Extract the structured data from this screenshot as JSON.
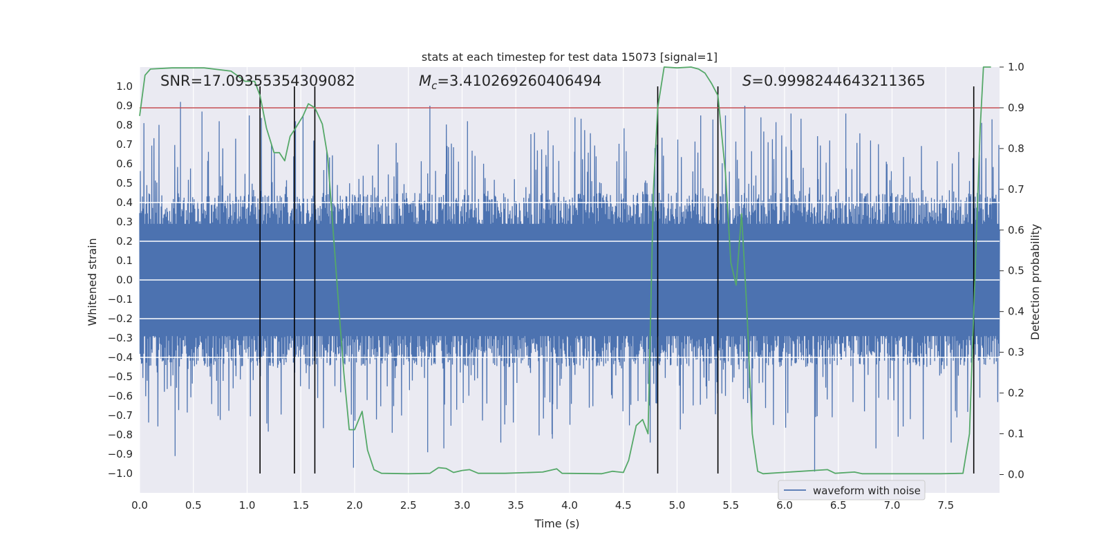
{
  "chart_data": {
    "type": "line",
    "title": "stats at each timestep for test data 15073 [signal=1]",
    "xlabel": "Time (s)",
    "ylabel": "Whitened strain",
    "y2label": "Detection probability",
    "xlim": [
      0.0,
      8.0
    ],
    "ylim": [
      -1.1,
      1.1
    ],
    "y2lim": [
      -0.045,
      1.0
    ],
    "x_ticks": [
      "0.0",
      "0.5",
      "1.0",
      "1.5",
      "2.0",
      "2.5",
      "3.0",
      "3.5",
      "4.0",
      "4.5",
      "5.0",
      "5.5",
      "6.0",
      "6.5",
      "7.0",
      "7.5"
    ],
    "y_ticks": [
      "1.0",
      "0.9",
      "0.8",
      "0.7",
      "0.6",
      "0.5",
      "0.4",
      "0.3",
      "0.2",
      "0.1",
      "0.0",
      "−0.1",
      "−0.2",
      "−0.3",
      "−0.4",
      "−0.5",
      "−0.6",
      "−0.7",
      "−0.8",
      "−0.9",
      "−1.0"
    ],
    "y2_ticks": [
      "1.0",
      "0.9",
      "0.8",
      "0.7",
      "0.6",
      "0.5",
      "0.4",
      "0.3",
      "0.2",
      "0.1",
      "0.0"
    ],
    "annotations": {
      "snr": "SNR=17.09355354309082",
      "mc_symbol": "M",
      "mc_sub": "c",
      "mc_value": "=3.410269260406494",
      "s_symbol": "S",
      "s_value": "=0.9998244643211365"
    },
    "threshold": {
      "y2": 0.9,
      "color": "#c44e52"
    },
    "vertical_lines_x": [
      1.12,
      1.44,
      1.63,
      4.82,
      5.38,
      7.76
    ],
    "series": [
      {
        "name": "waveform with noise",
        "axis": "left",
        "color": "#4c72b0",
        "envelope_note": "dense noise, typical amplitude within ±0.4, peaks up to ±1.0",
        "peaks": [
          {
            "x": 0.33,
            "y": -0.91
          },
          {
            "x": 0.38,
            "y": 0.92
          },
          {
            "x": 0.58,
            "y": 0.87
          },
          {
            "x": 0.74,
            "y": 0.82
          },
          {
            "x": 1.02,
            "y": 0.85
          },
          {
            "x": 1.45,
            "y": 0.82
          },
          {
            "x": 1.52,
            "y": 0.85
          },
          {
            "x": 1.99,
            "y": -0.97
          },
          {
            "x": 2.68,
            "y": -0.89
          },
          {
            "x": 2.7,
            "y": 0.9
          },
          {
            "x": 2.83,
            "y": -0.87
          },
          {
            "x": 3.05,
            "y": 0.82
          },
          {
            "x": 3.36,
            "y": -0.84
          },
          {
            "x": 3.84,
            "y": -0.82
          },
          {
            "x": 4.05,
            "y": 0.84
          },
          {
            "x": 4.75,
            "y": -0.84
          },
          {
            "x": 5.22,
            "y": 0.85
          },
          {
            "x": 5.45,
            "y": 0.85
          },
          {
            "x": 5.63,
            "y": 0.9
          },
          {
            "x": 5.78,
            "y": 0.84
          },
          {
            "x": 6.06,
            "y": 0.86
          },
          {
            "x": 6.28,
            "y": -0.99
          },
          {
            "x": 6.57,
            "y": 0.86
          },
          {
            "x": 6.85,
            "y": -0.87
          },
          {
            "x": 7.55,
            "y": -0.84
          },
          {
            "x": 7.93,
            "y": 0.83
          }
        ]
      },
      {
        "name": "detection probability",
        "axis": "right",
        "color": "#55a868",
        "points": [
          [
            0.0,
            0.88
          ],
          [
            0.05,
            0.98
          ],
          [
            0.1,
            0.995
          ],
          [
            0.3,
            0.998
          ],
          [
            0.6,
            0.998
          ],
          [
            0.85,
            0.99
          ],
          [
            0.93,
            0.975
          ],
          [
            0.98,
            0.965
          ],
          [
            1.07,
            0.965
          ],
          [
            1.12,
            0.93
          ],
          [
            1.18,
            0.85
          ],
          [
            1.25,
            0.79
          ],
          [
            1.3,
            0.79
          ],
          [
            1.35,
            0.77
          ],
          [
            1.4,
            0.83
          ],
          [
            1.45,
            0.85
          ],
          [
            1.52,
            0.88
          ],
          [
            1.57,
            0.91
          ],
          [
            1.63,
            0.9
          ],
          [
            1.7,
            0.86
          ],
          [
            1.75,
            0.78
          ],
          [
            1.8,
            0.6
          ],
          [
            1.85,
            0.42
          ],
          [
            1.9,
            0.25
          ],
          [
            1.95,
            0.11
          ],
          [
            2.0,
            0.11
          ],
          [
            2.07,
            0.155
          ],
          [
            2.12,
            0.06
          ],
          [
            2.18,
            0.012
          ],
          [
            2.25,
            0.003
          ],
          [
            2.5,
            0.002
          ],
          [
            2.7,
            0.003
          ],
          [
            2.78,
            0.017
          ],
          [
            2.85,
            0.015
          ],
          [
            2.92,
            0.005
          ],
          [
            3.0,
            0.01
          ],
          [
            3.07,
            0.012
          ],
          [
            3.15,
            0.003
          ],
          [
            3.4,
            0.003
          ],
          [
            3.75,
            0.006
          ],
          [
            3.88,
            0.014
          ],
          [
            3.93,
            0.003
          ],
          [
            4.3,
            0.002
          ],
          [
            4.4,
            0.008
          ],
          [
            4.5,
            0.005
          ],
          [
            4.55,
            0.035
          ],
          [
            4.62,
            0.12
          ],
          [
            4.68,
            0.135
          ],
          [
            4.73,
            0.1
          ],
          [
            4.78,
            0.7
          ],
          [
            4.82,
            0.9
          ],
          [
            4.88,
            1.0
          ],
          [
            5.0,
            0.998
          ],
          [
            5.13,
            1.0
          ],
          [
            5.2,
            0.995
          ],
          [
            5.26,
            0.985
          ],
          [
            5.32,
            0.96
          ],
          [
            5.38,
            0.93
          ],
          [
            5.45,
            0.74
          ],
          [
            5.5,
            0.52
          ],
          [
            5.55,
            0.465
          ],
          [
            5.6,
            0.64
          ],
          [
            5.65,
            0.4
          ],
          [
            5.7,
            0.1
          ],
          [
            5.75,
            0.008
          ],
          [
            5.8,
            0.002
          ],
          [
            6.4,
            0.012
          ],
          [
            6.47,
            0.003
          ],
          [
            6.65,
            0.006
          ],
          [
            6.72,
            0.002
          ],
          [
            7.45,
            0.002
          ],
          [
            7.66,
            0.003
          ],
          [
            7.72,
            0.1
          ],
          [
            7.78,
            0.55
          ],
          [
            7.82,
            0.85
          ],
          [
            7.85,
            1.0
          ],
          [
            7.92,
            1.0
          ]
        ]
      }
    ],
    "legend": {
      "label": "waveform with noise",
      "position": "lower-right"
    },
    "grid": true
  }
}
